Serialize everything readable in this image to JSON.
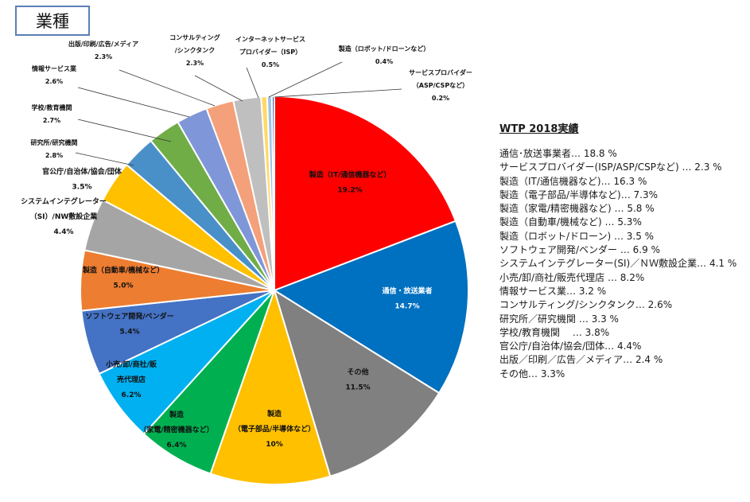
{
  "title": "業種",
  "chart_data": {
    "type": "pie",
    "slices": [
      {
        "label_lines": [
          "製造（IT/通信機器など）"
        ],
        "value_text": "19.2%",
        "value": 19.2,
        "color": "#ff0000"
      },
      {
        "label_lines": [
          "通信・放送業者"
        ],
        "value_text": "14.7%",
        "value": 14.7,
        "color": "#0070c0"
      },
      {
        "label_lines": [
          "その他"
        ],
        "value_text": "11.5%",
        "value": 11.5,
        "color": "#808080"
      },
      {
        "label_lines": [
          "製造",
          "（電子部品/半導体など）"
        ],
        "value_text": "10%",
        "value": 10.0,
        "color": "#ffc000"
      },
      {
        "label_lines": [
          "製造",
          "（家電/精密機器など）"
        ],
        "value_text": "6.4%",
        "value": 6.4,
        "color": "#00b050"
      },
      {
        "label_lines": [
          "小売/卸/商社/販",
          "売代理店"
        ],
        "value_text": "6.2%",
        "value": 6.2,
        "color": "#00b0f0"
      },
      {
        "label_lines": [
          "ソフトウェア開発/ベンダー"
        ],
        "value_text": "5.4%",
        "value": 5.4,
        "color": "#4472c4"
      },
      {
        "label_lines": [
          "製造（自動車/機械など）"
        ],
        "value_text": "5.0%",
        "value": 5.0,
        "color": "#ed7d31"
      },
      {
        "label_lines": [
          "システムインテグレーター",
          "（SI）/NW敷設企業"
        ],
        "value_text": "4.4%",
        "value": 4.4,
        "color": "#a5a5a5"
      },
      {
        "label_lines": [
          "官公庁/自治体/協会/団体"
        ],
        "value_text": "3.5%",
        "value": 3.5,
        "color": "#ffc000"
      },
      {
        "label_lines": [
          "研究所/研究機関"
        ],
        "value_text": "2.8%",
        "value": 2.8,
        "color": "#4a90c8"
      },
      {
        "label_lines": [
          "学校/教育機関"
        ],
        "value_text": "2.7%",
        "value": 2.7,
        "color": "#70ad47"
      },
      {
        "label_lines": [
          "情報サービス業"
        ],
        "value_text": "2.6%",
        "value": 2.6,
        "color": "#7f96d8"
      },
      {
        "label_lines": [
          "出版/印刷/広告/メディア"
        ],
        "value_text": "2.3%",
        "value": 2.3,
        "color": "#f4a07a"
      },
      {
        "label_lines": [
          "コンサルティング",
          "/シンクタンク"
        ],
        "value_text": "2.3%",
        "value": 2.3,
        "color": "#bfbfbf"
      },
      {
        "label_lines": [
          "インターネットサービス",
          "プロバイダー（ISP）"
        ],
        "value_text": "0.5%",
        "value": 0.5,
        "color": "#ffd966"
      },
      {
        "label_lines": [
          "製造（ロボット/ドローンなど）"
        ],
        "value_text": "0.4%",
        "value": 0.4,
        "color": "#9dc3e6"
      },
      {
        "label_lines": [
          "サービスプロバイダー",
          "（ASP/CSPなど）"
        ],
        "value_text": "0.2%",
        "value": 0.2,
        "color": "#2f5597"
      }
    ]
  },
  "wtp": {
    "title": "WTP 2018実績",
    "items": [
      "通信･放送事業者… 18.8 %",
      "サービスプロバイダー(ISP/ASP/CSPなど) … 2.3 %",
      "製造（IT/通信機器など)… 16.3 %",
      "製造（電子部品/半導体など)… 7.3%",
      "製造（家電/精密機器など) … 5.8 %",
      "製造（自動車/機械など) … 5.3%",
      "製造（ロボット/ドローン) … 3.5 %",
      "ソフトウェア開発/ベンダー … 6.9 %",
      "システムインテグレーター(SI)／ＮＷ敷設企業… 4.1 %",
      "小売/卸/商社/販売代理店 … 8.2%",
      "情報サービス業… 3.2 %",
      "コンサルティング/シンクタンク… 2.6%",
      "研究所／研究機関 … 3.3 %",
      "学校/教育機関　 … 3.8%",
      "官公庁/自治体/協会/団体… 4.4%",
      "出版／印刷／広告／メディア… 2.4 %",
      "その他… 3.3%"
    ]
  }
}
